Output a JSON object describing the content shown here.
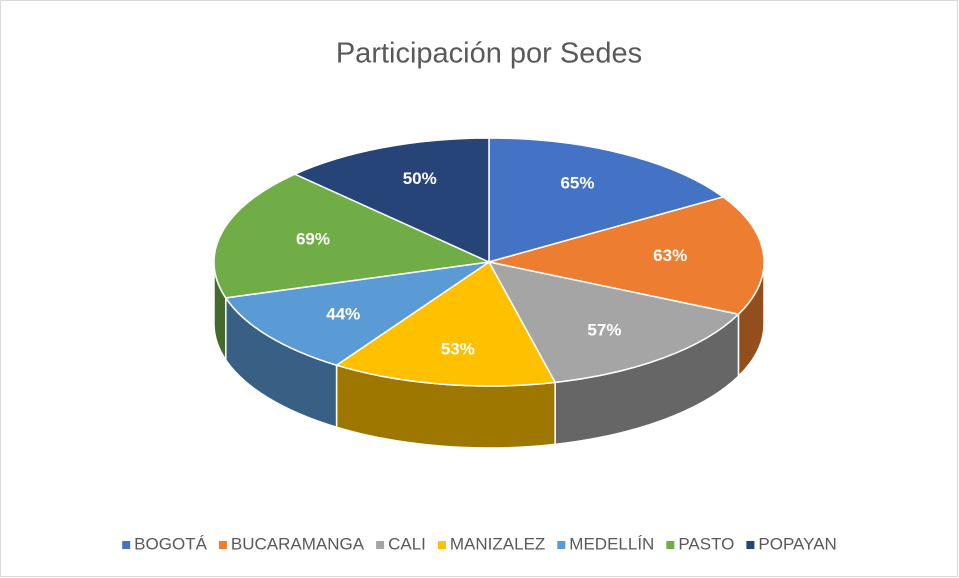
{
  "chart_data": {
    "type": "pie",
    "title": "Participación por Sedes",
    "categories": [
      "BOGOTÁ",
      "BUCARAMANGA",
      "CALI",
      "MANIZALEZ",
      "MEDELLÍN",
      "PASTO",
      "POPAYAN"
    ],
    "values": [
      65,
      63,
      57,
      53,
      44,
      69,
      50
    ],
    "value_labels": [
      "65%",
      "63%",
      "57%",
      "53%",
      "44%",
      "69%",
      "50%"
    ],
    "colors": [
      "#4472c4",
      "#ed7d31",
      "#a5a5a5",
      "#ffc000",
      "#5b9bd5",
      "#70ad47",
      "#264478"
    ],
    "legend": "bottom"
  }
}
